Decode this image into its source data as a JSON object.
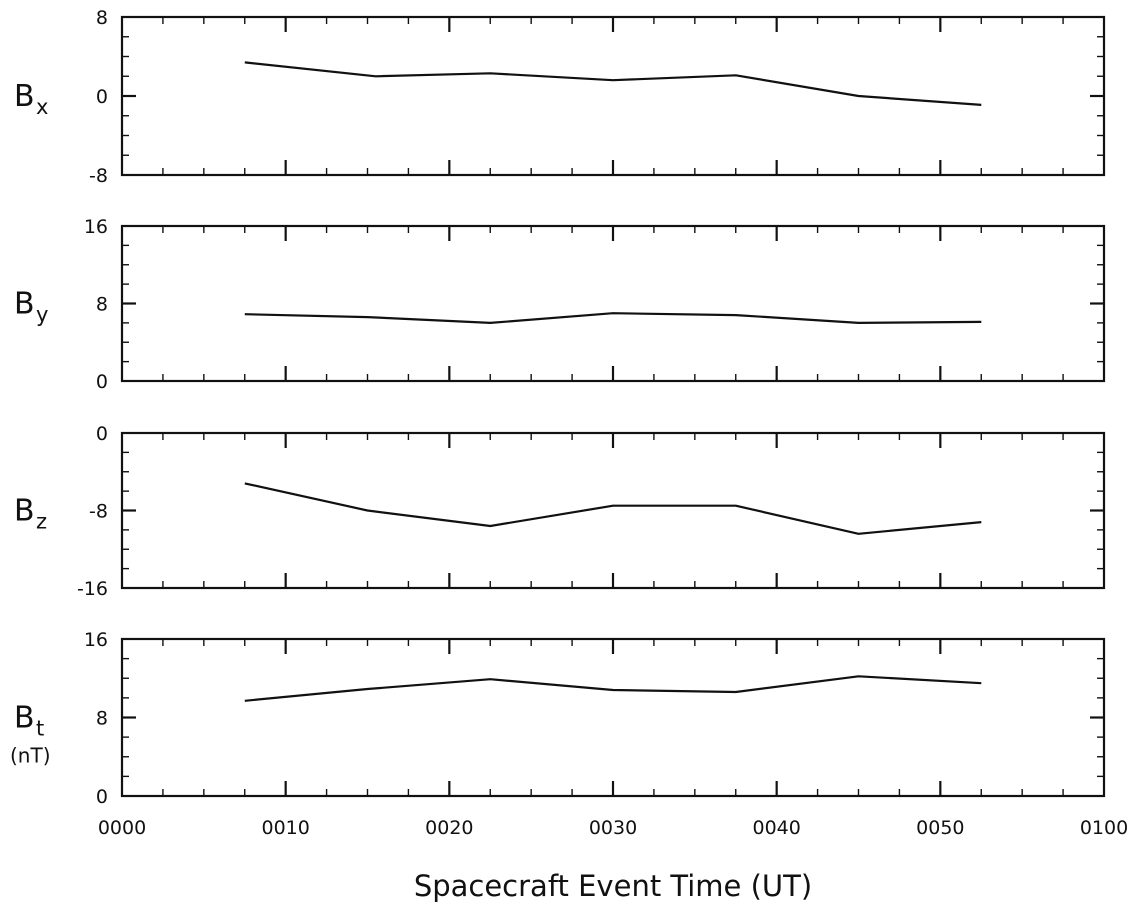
{
  "chart_data": {
    "type": "line",
    "xlabel": "Spacecraft Event Time (UT)",
    "x_tick_labels": [
      "0000",
      "0010",
      "0020",
      "0030",
      "0040",
      "0050",
      "0100"
    ],
    "x_ticks_minutes": [
      0,
      10,
      20,
      30,
      40,
      50,
      60
    ],
    "xlim_minutes": [
      0,
      60
    ],
    "panels": [
      {
        "id": "bx",
        "label": "B",
        "subscript": "x",
        "unit": "",
        "ylim": [
          -8,
          8
        ],
        "y_ticks": [
          -8,
          0,
          8
        ],
        "y_tick_labels": [
          "-8",
          "0",
          "8"
        ],
        "x_minutes": [
          7.5,
          15.5,
          22.5,
          30,
          37.5,
          45,
          52.5
        ],
        "values": [
          3.4,
          2.0,
          2.3,
          1.6,
          2.1,
          0.0,
          -0.9
        ]
      },
      {
        "id": "by",
        "label": "B",
        "subscript": "y",
        "unit": "",
        "ylim": [
          0,
          16
        ],
        "y_ticks": [
          0,
          8,
          16
        ],
        "y_tick_labels": [
          "0",
          "8",
          "16"
        ],
        "x_minutes": [
          7.5,
          15,
          22.5,
          30,
          37.5,
          45,
          52.5
        ],
        "values": [
          6.9,
          6.6,
          6.0,
          7.0,
          6.8,
          6.0,
          6.1
        ]
      },
      {
        "id": "bz",
        "label": "B",
        "subscript": "z",
        "unit": "",
        "ylim": [
          -16,
          0
        ],
        "y_ticks": [
          -16,
          -8,
          0
        ],
        "y_tick_labels": [
          "-16",
          "-8",
          "0"
        ],
        "x_minutes": [
          7.5,
          15,
          22.5,
          30,
          37.5,
          45,
          52.5
        ],
        "values": [
          -5.2,
          -8.0,
          -9.6,
          -7.5,
          -7.5,
          -10.4,
          -9.2
        ]
      },
      {
        "id": "bt",
        "label": "B",
        "subscript": "t",
        "unit": "(nT)",
        "ylim": [
          0,
          16
        ],
        "y_ticks": [
          0,
          8,
          16
        ],
        "y_tick_labels": [
          "0",
          "8",
          "16"
        ],
        "x_minutes": [
          7.5,
          15,
          22.5,
          30,
          37.5,
          45,
          52.5
        ],
        "values": [
          9.7,
          10.9,
          11.9,
          10.8,
          10.6,
          12.2,
          11.5
        ]
      }
    ]
  }
}
